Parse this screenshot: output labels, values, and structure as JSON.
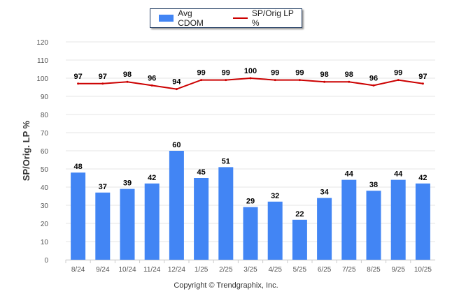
{
  "chart_data": {
    "type": "bar",
    "categories": [
      "8/24",
      "9/24",
      "10/24",
      "11/24",
      "12/24",
      "1/25",
      "2/25",
      "3/25",
      "4/25",
      "5/25",
      "6/25",
      "7/25",
      "8/25",
      "9/25",
      "10/25"
    ],
    "series": [
      {
        "name": "Avg CDOM",
        "type": "bar",
        "color": "#4285f4",
        "values": [
          48,
          37,
          39,
          42,
          60,
          45,
          51,
          29,
          32,
          22,
          34,
          44,
          38,
          44,
          42
        ]
      },
      {
        "name": "SP/Orig LP %",
        "type": "line",
        "color": "#cc0000",
        "values": [
          97,
          97,
          98,
          96,
          94,
          99,
          99,
          100,
          99,
          99,
          98,
          98,
          96,
          99,
          97
        ]
      }
    ],
    "ylabel": "SP/Orig. LP %",
    "xlabel": "",
    "ylim": [
      0,
      120
    ],
    "yticks": [
      0,
      10,
      20,
      30,
      40,
      50,
      60,
      70,
      80,
      90,
      100,
      110,
      120
    ],
    "grid": true,
    "legend_position": "top-center"
  },
  "legend": {
    "bar_label": "Avg CDOM",
    "line_label": "SP/Orig LP %"
  },
  "footer": {
    "copyright": "Copyright © Trendgraphix, Inc."
  }
}
